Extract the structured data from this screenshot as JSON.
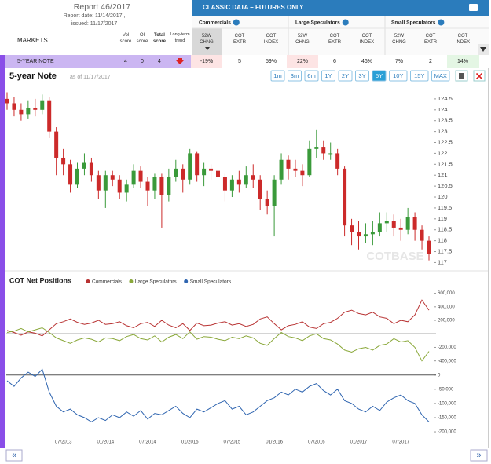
{
  "header": {
    "report": "Report 46/2017",
    "report_date": "Report date: 11/14/2017 ,",
    "issued": "issued: 11/17/2017",
    "banner": "CLASSIC DATA – FUTURES ONLY"
  },
  "table": {
    "markets": "MARKETS",
    "left_columns": [
      [
        "Vol",
        "score"
      ],
      [
        "OI",
        "score"
      ],
      [
        "Total",
        "score"
      ],
      [
        "Long-term",
        "trend"
      ]
    ],
    "groups": [
      {
        "name": "Commercials",
        "columns": [
          [
            "52W",
            "CHNG"
          ],
          [
            "COT",
            "EXTR"
          ],
          [
            "COT",
            "INDEX"
          ]
        ]
      },
      {
        "name": "Large Speculators",
        "columns": [
          [
            "52W",
            "CHNG"
          ],
          [
            "COT",
            "EXTR"
          ],
          [
            "COT",
            "INDEX"
          ]
        ]
      },
      {
        "name": "Small Speculators",
        "columns": [
          [
            "52W",
            "CHNG"
          ],
          [
            "COT",
            "EXTR"
          ],
          [
            "COT",
            "INDEX"
          ]
        ]
      }
    ],
    "row": {
      "market": "5-YEAR NOTE",
      "scores": [
        4,
        0,
        4
      ],
      "cells": [
        "-19%",
        "5",
        "59%",
        "22%",
        "6",
        "46%",
        "7%",
        "2",
        "14%"
      ],
      "cell_colors": [
        "#fde4e4",
        "#ffffff",
        "#ffffff",
        "#fde4e4",
        "#ffffff",
        "#ffffff",
        "#ffffff",
        "#ffffff",
        "#e4f6e4"
      ]
    }
  },
  "ranges": {
    "buttons": [
      "1m",
      "3m",
      "6m",
      "1Y",
      "2Y",
      "3Y",
      "5Y",
      "10Y",
      "15Y",
      "MAX"
    ],
    "active": "5Y"
  },
  "chart_data": [
    {
      "type": "candlestick",
      "title": "5-year Note",
      "subtitle": "as of 11/17/2017",
      "watermark": "COTBASE",
      "up_color": "#3a9a3a",
      "down_color": "#cc2a2a",
      "x": [
        "11/2012",
        "12/2012",
        "01/2013",
        "02/2013",
        "03/2013",
        "04/2013",
        "05/2013",
        "06/2013",
        "07/2013",
        "08/2013",
        "09/2013",
        "10/2013",
        "11/2013",
        "12/2013",
        "01/2014",
        "02/2014",
        "03/2014",
        "04/2014",
        "05/2014",
        "06/2014",
        "07/2014",
        "08/2014",
        "09/2014",
        "10/2014",
        "11/2014",
        "12/2014",
        "01/2015",
        "02/2015",
        "03/2015",
        "04/2015",
        "05/2015",
        "06/2015",
        "07/2015",
        "08/2015",
        "09/2015",
        "10/2015",
        "11/2015",
        "12/2015",
        "01/2016",
        "02/2016",
        "03/2016",
        "04/2016",
        "05/2016",
        "06/2016",
        "07/2016",
        "08/2016",
        "09/2016",
        "10/2016",
        "11/2016",
        "12/2016",
        "01/2017",
        "02/2017",
        "03/2017",
        "04/2017",
        "05/2017",
        "06/2017",
        "07/2017",
        "08/2017",
        "09/2017",
        "10/2017",
        "11/2017"
      ],
      "open": [
        124.5,
        124.3,
        124.0,
        123.8,
        124.1,
        124.0,
        124.4,
        123.0,
        121.8,
        121.5,
        120.6,
        121.3,
        121.6,
        121.0,
        120.3,
        121.0,
        120.8,
        120.2,
        120.6,
        121.2,
        120.7,
        120.3,
        120.9,
        120.1,
        120.9,
        121.3,
        120.8,
        122.0,
        121.0,
        121.3,
        121.2,
        120.9,
        120.3,
        120.8,
        120.6,
        121.0,
        120.8,
        119.9,
        119.6,
        120.8,
        121.7,
        121.3,
        121.2,
        121.0,
        122.2,
        122.3,
        122.0,
        122.0,
        121.3,
        118.7,
        118.4,
        118.2,
        118.3,
        118.4,
        118.8,
        118.9,
        118.6,
        118.5,
        119.1,
        118.5,
        118.0
      ],
      "high": [
        124.8,
        124.6,
        124.3,
        124.4,
        124.5,
        124.7,
        124.6,
        123.2,
        122.2,
        121.7,
        121.6,
        122.0,
        121.8,
        121.2,
        121.2,
        121.2,
        121.0,
        120.8,
        121.5,
        121.4,
        120.9,
        121.1,
        121.1,
        121.3,
        121.7,
        121.5,
        122.2,
        122.1,
        121.6,
        121.5,
        121.4,
        121.1,
        121.0,
        121.2,
        121.4,
        121.5,
        121.0,
        120.3,
        121.0,
        122.0,
        121.9,
        121.7,
        121.5,
        122.6,
        123.1,
        122.6,
        122.5,
        122.2,
        121.4,
        119.0,
        118.9,
        118.8,
        118.9,
        119.3,
        119.3,
        119.2,
        119.0,
        119.5,
        119.3,
        118.7,
        118.2
      ],
      "low": [
        124.0,
        123.7,
        123.5,
        123.6,
        123.7,
        123.8,
        122.7,
        121.0,
        121.0,
        120.2,
        120.4,
        121.0,
        120.7,
        119.9,
        119.5,
        120.5,
        119.9,
        119.8,
        120.4,
        120.4,
        119.6,
        119.9,
        118.6,
        119.8,
        120.7,
        120.2,
        120.6,
        120.7,
        120.5,
        120.8,
        120.5,
        119.8,
        120.0,
        120.2,
        120.4,
        120.4,
        119.4,
        119.2,
        118.2,
        120.6,
        120.8,
        120.9,
        120.5,
        120.9,
        121.8,
        121.7,
        121.7,
        121.0,
        118.2,
        117.8,
        117.6,
        117.9,
        117.8,
        118.2,
        118.4,
        118.2,
        118.0,
        118.3,
        118.0,
        117.6,
        117.1
      ],
      "close": [
        124.3,
        124.0,
        123.8,
        124.1,
        124.0,
        124.4,
        123.0,
        121.8,
        121.5,
        120.6,
        121.3,
        121.6,
        121.0,
        120.3,
        121.0,
        120.8,
        120.2,
        120.6,
        121.2,
        120.7,
        120.3,
        120.9,
        120.1,
        120.9,
        121.3,
        120.8,
        122.0,
        121.0,
        121.3,
        121.2,
        120.9,
        120.3,
        120.8,
        120.6,
        121.0,
        120.8,
        119.9,
        119.6,
        120.8,
        121.7,
        121.3,
        121.2,
        121.0,
        122.2,
        122.3,
        122.0,
        122.0,
        121.3,
        118.7,
        118.4,
        118.2,
        118.3,
        118.4,
        118.8,
        118.9,
        118.6,
        118.5,
        119.1,
        118.5,
        118.0,
        117.4
      ],
      "ylim": [
        116.8,
        125
      ],
      "yticks": [
        117,
        117.5,
        118,
        118.5,
        119,
        119.5,
        120,
        120.5,
        121,
        121.5,
        122,
        122.5,
        123,
        123.5,
        124,
        124.5
      ],
      "xticks": [
        "07/2013",
        "01/2014",
        "07/2014",
        "01/2015",
        "07/2015",
        "01/2016",
        "07/2016",
        "01/2017",
        "07/2017"
      ]
    },
    {
      "type": "line",
      "title": "COT Net Positions",
      "series": [
        {
          "name": "Commercials",
          "color": "#b83232",
          "values": [
            50000,
            20000,
            -20000,
            30000,
            10000,
            -30000,
            60000,
            150000,
            180000,
            220000,
            170000,
            140000,
            160000,
            200000,
            140000,
            150000,
            180000,
            120000,
            90000,
            150000,
            170000,
            110000,
            200000,
            130000,
            90000,
            150000,
            50000,
            160000,
            120000,
            130000,
            160000,
            180000,
            130000,
            150000,
            110000,
            140000,
            220000,
            250000,
            150000,
            60000,
            120000,
            140000,
            180000,
            100000,
            80000,
            150000,
            170000,
            230000,
            320000,
            350000,
            300000,
            280000,
            320000,
            250000,
            230000,
            150000,
            200000,
            180000,
            280000,
            500000,
            350000
          ]
        },
        {
          "name": "Large Speculators",
          "color": "#8aa83a",
          "values": [
            20000,
            40000,
            80000,
            30000,
            60000,
            90000,
            20000,
            -60000,
            -100000,
            -140000,
            -90000,
            -60000,
            -80000,
            -120000,
            -60000,
            -70000,
            -100000,
            -40000,
            -10000,
            -70000,
            -90000,
            -30000,
            -120000,
            -50000,
            -10000,
            -70000,
            30000,
            -80000,
            -40000,
            -50000,
            -80000,
            -100000,
            -50000,
            -70000,
            -30000,
            -60000,
            -140000,
            -170000,
            -70000,
            20000,
            -40000,
            -60000,
            -100000,
            -30000,
            0,
            -70000,
            -90000,
            -150000,
            -240000,
            -270000,
            -220000,
            -200000,
            -240000,
            -170000,
            -150000,
            -70000,
            -120000,
            -100000,
            -200000,
            -400000,
            -260000
          ]
        }
      ],
      "ylim": [
        -520000,
        700000
      ],
      "yticks": [
        {
          "value": -400000,
          "label": "-400,000"
        },
        {
          "value": -200000,
          "label": "-200,000"
        },
        {
          "value": 200000,
          "label": "200,000"
        },
        {
          "value": 400000,
          "label": "400,000"
        },
        {
          "value": 600000,
          "label": "600,000"
        }
      ]
    },
    {
      "type": "line",
      "series": [
        {
          "name": "Small Speculators",
          "color": "#2f65b0",
          "values": [
            -20000,
            -40000,
            -10000,
            10000,
            -5000,
            20000,
            -60000,
            -110000,
            -130000,
            -120000,
            -140000,
            -150000,
            -165000,
            -150000,
            -160000,
            -140000,
            -150000,
            -130000,
            -145000,
            -125000,
            -155000,
            -135000,
            -140000,
            -125000,
            -110000,
            -135000,
            -150000,
            -120000,
            -130000,
            -115000,
            -100000,
            -90000,
            -120000,
            -110000,
            -140000,
            -130000,
            -110000,
            -90000,
            -80000,
            -60000,
            -70000,
            -50000,
            -60000,
            -40000,
            -30000,
            -55000,
            -70000,
            -50000,
            -90000,
            -100000,
            -120000,
            -130000,
            -110000,
            -125000,
            -95000,
            -80000,
            -70000,
            -90000,
            -100000,
            -140000,
            -165000
          ]
        }
      ],
      "ylim": [
        -222000,
        27000
      ],
      "yticks": [
        {
          "value": -200000,
          "label": "-200,000"
        },
        {
          "value": -150000,
          "label": "-150,000"
        },
        {
          "value": -100000,
          "label": "-100,000"
        },
        {
          "value": -50000,
          "label": "-50,000"
        },
        0
      ]
    }
  ],
  "nav": {
    "prev": "«",
    "next": "»"
  }
}
